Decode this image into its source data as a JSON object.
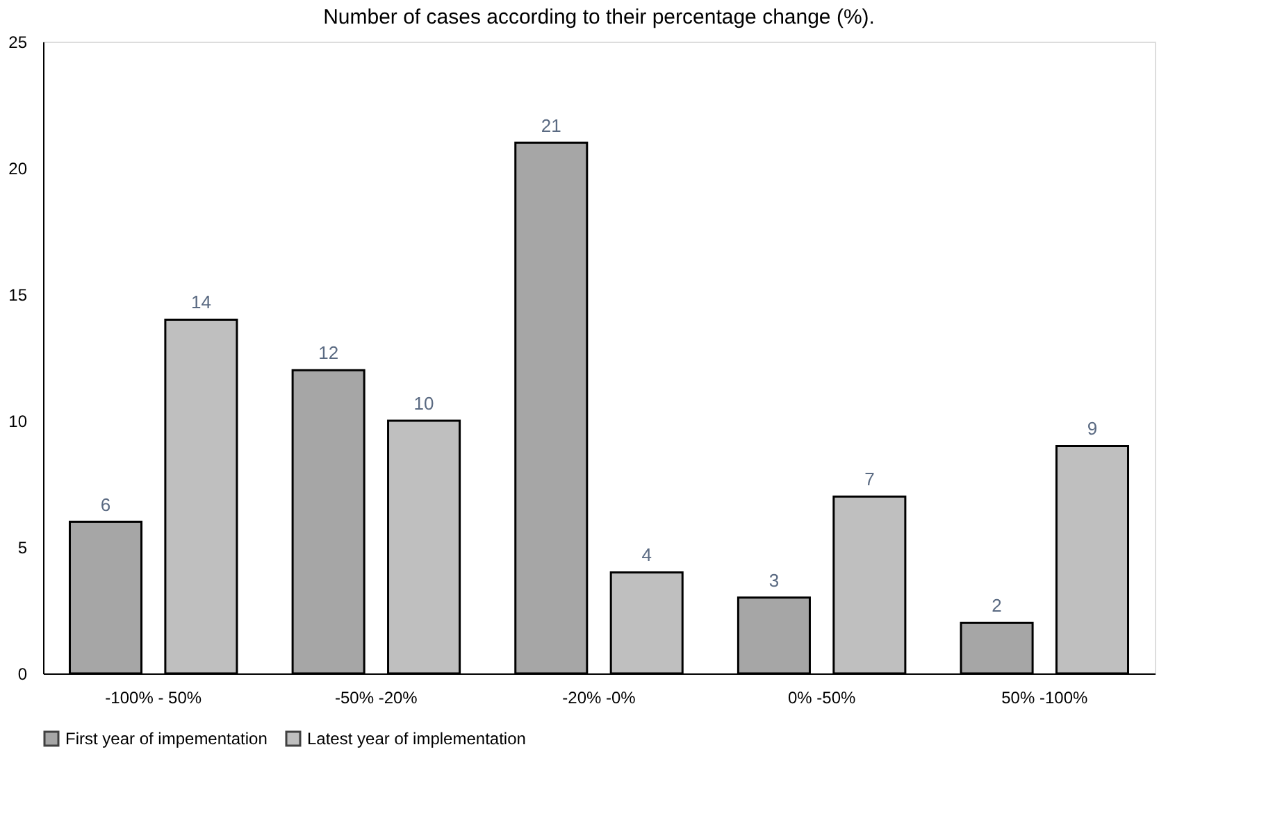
{
  "chart_data": {
    "type": "bar",
    "title": "Number of cases according to their percentage change (%).",
    "categories": [
      "-100% - 50%",
      "-50%  -20%",
      "-20% -0%",
      "0% -50%",
      "50% -100%"
    ],
    "series": [
      {
        "name": "First year of impementation",
        "color": "#a6a6a6",
        "values": [
          6,
          12,
          21,
          3,
          2
        ]
      },
      {
        "name": "Latest year of implementation",
        "color": "#bfbfbf",
        "values": [
          14,
          10,
          4,
          7,
          9
        ]
      }
    ],
    "ylim": [
      0,
      25
    ],
    "yticks": [
      0,
      5,
      10,
      15,
      20,
      25
    ],
    "grid": false,
    "legend": "bottom",
    "data_labels": true
  }
}
